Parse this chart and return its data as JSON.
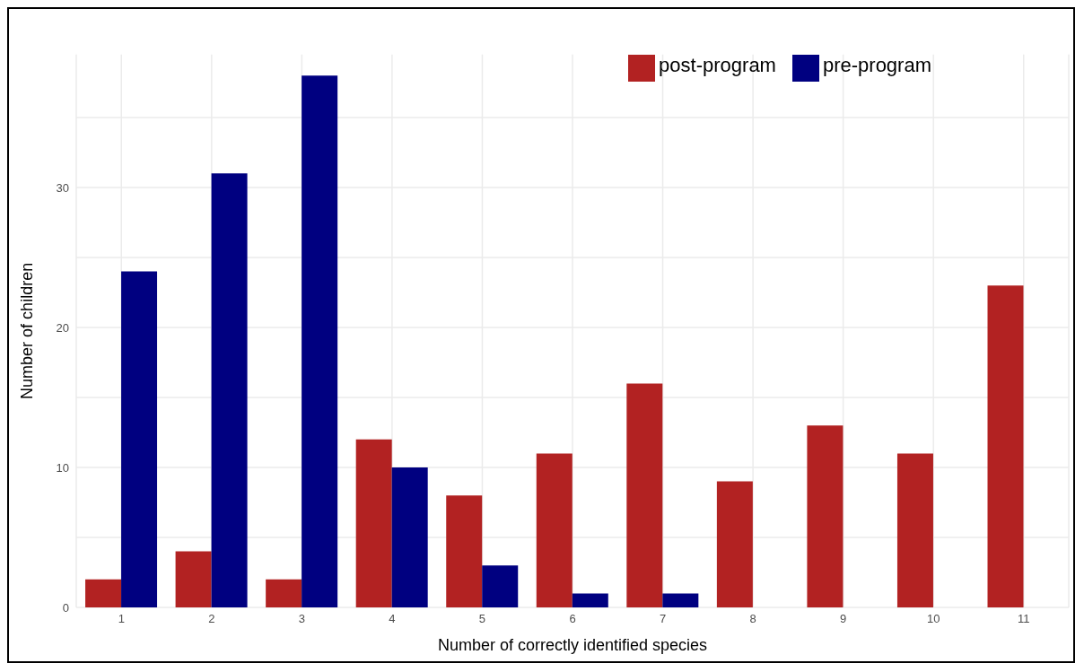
{
  "chart_data": {
    "type": "bar",
    "xlabel": "Number of correctly identified species",
    "ylabel": "Number of children",
    "categories": [
      "1",
      "2",
      "3",
      "4",
      "5",
      "6",
      "7",
      "8",
      "9",
      "10",
      "11"
    ],
    "series": [
      {
        "name": "post-program",
        "color": "#b22222",
        "values": [
          2,
          4,
          2,
          12,
          8,
          11,
          16,
          9,
          13,
          11,
          23
        ]
      },
      {
        "name": "pre-program",
        "color": "#000080",
        "values": [
          24,
          31,
          38,
          10,
          3,
          1,
          1,
          null,
          null,
          null,
          null
        ]
      }
    ],
    "ylim": [
      0,
      39.5
    ],
    "yticks": [
      0,
      {
        "value": 5,
        "label": null
      },
      10,
      {
        "value": 15,
        "label": null
      },
      20,
      {
        "value": 25,
        "label": null
      },
      30,
      {
        "value": 35,
        "label": null
      }
    ],
    "grid": true,
    "legend": "top right"
  }
}
